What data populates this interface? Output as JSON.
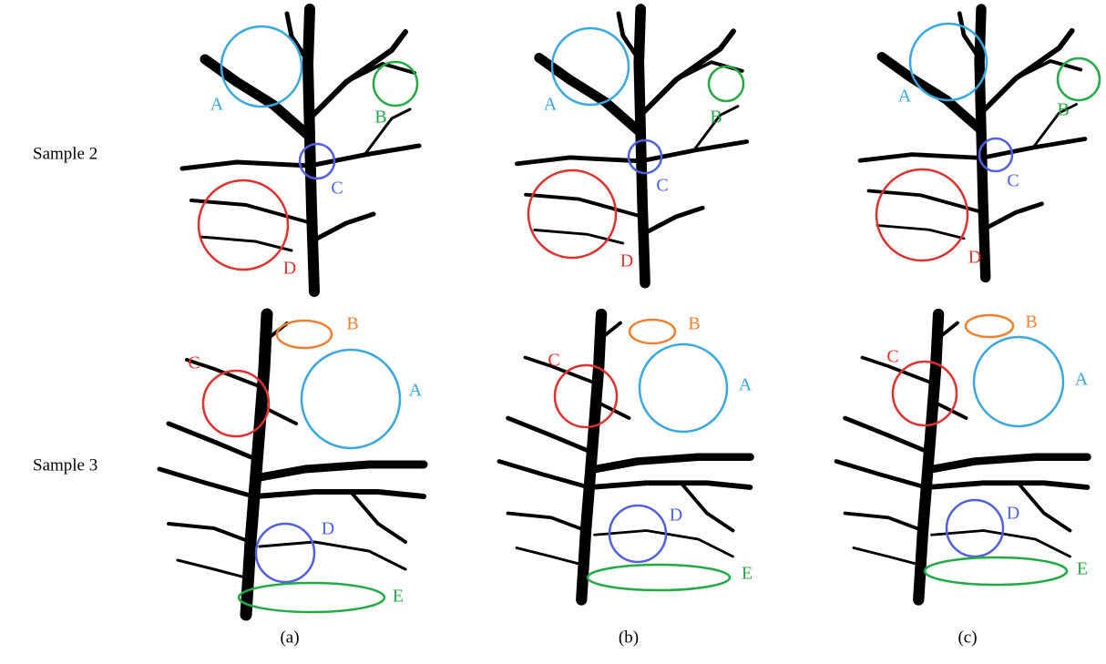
{
  "rows": [
    {
      "label": "Sample 2",
      "panels": [
        {
          "annotations": [
            "A",
            "B",
            "C",
            "D"
          ]
        },
        {
          "annotations": [
            "A",
            "B",
            "C",
            "D"
          ]
        },
        {
          "annotations": [
            "A",
            "B",
            "C",
            "D"
          ]
        }
      ]
    },
    {
      "label": "Sample 3",
      "panels": [
        {
          "annotations": [
            "A",
            "B",
            "C",
            "D",
            "E"
          ]
        },
        {
          "annotations": [
            "A",
            "B",
            "C",
            "D",
            "E"
          ]
        },
        {
          "annotations": [
            "A",
            "B",
            "C",
            "D",
            "E"
          ]
        }
      ]
    }
  ],
  "captions": [
    "(a)",
    "(b)",
    "(c)"
  ]
}
